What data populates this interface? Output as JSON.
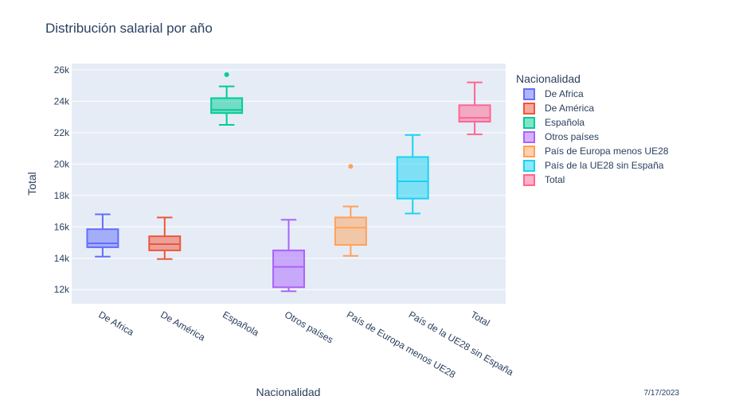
{
  "chart_data": {
    "type": "box",
    "title": "Distribución salarial por año",
    "xlabel": "Nacionalidad",
    "ylabel": "Total",
    "ylim": [
      11100,
      26400
    ],
    "y_ticks": [
      12000,
      14000,
      16000,
      18000,
      20000,
      22000,
      24000,
      26000
    ],
    "y_tick_labels": [
      "12k",
      "14k",
      "16k",
      "18k",
      "20k",
      "22k",
      "24k",
      "26k"
    ],
    "grid": true,
    "legend_title": "Nacionalidad",
    "legend_position": "right",
    "series": [
      {
        "name": "De Africa",
        "color": "#636efa",
        "min": 14100,
        "q1": 14700,
        "median": 14950,
        "q3": 15850,
        "max": 16800,
        "outliers": []
      },
      {
        "name": "De América",
        "color": "#EF553B",
        "min": 13950,
        "q1": 14500,
        "median": 14900,
        "q3": 15400,
        "max": 16600,
        "outliers": []
      },
      {
        "name": "Española",
        "color": "#00cc96",
        "min": 22500,
        "q1": 23250,
        "median": 23450,
        "q3": 24200,
        "max": 24950,
        "outliers": [
          25700
        ]
      },
      {
        "name": "Otros países",
        "color": "#ab63fa",
        "min": 11900,
        "q1": 12150,
        "median": 13450,
        "q3": 14500,
        "max": 16450,
        "outliers": []
      },
      {
        "name": "País de Europa menos UE28",
        "color": "#FFA15A",
        "min": 14150,
        "q1": 14850,
        "median": 15950,
        "q3": 16600,
        "max": 17300,
        "outliers": [
          19850
        ]
      },
      {
        "name": "País de la UE28 sin España",
        "color": "#19d3f3",
        "min": 16850,
        "q1": 17800,
        "median": 18900,
        "q3": 20450,
        "max": 21850,
        "outliers": []
      },
      {
        "name": "Total",
        "color": "#FF6692",
        "min": 21900,
        "q1": 22700,
        "median": 22950,
        "q3": 23750,
        "max": 25200,
        "outliers": []
      }
    ]
  },
  "footer": {
    "date": "7/17/2023"
  }
}
